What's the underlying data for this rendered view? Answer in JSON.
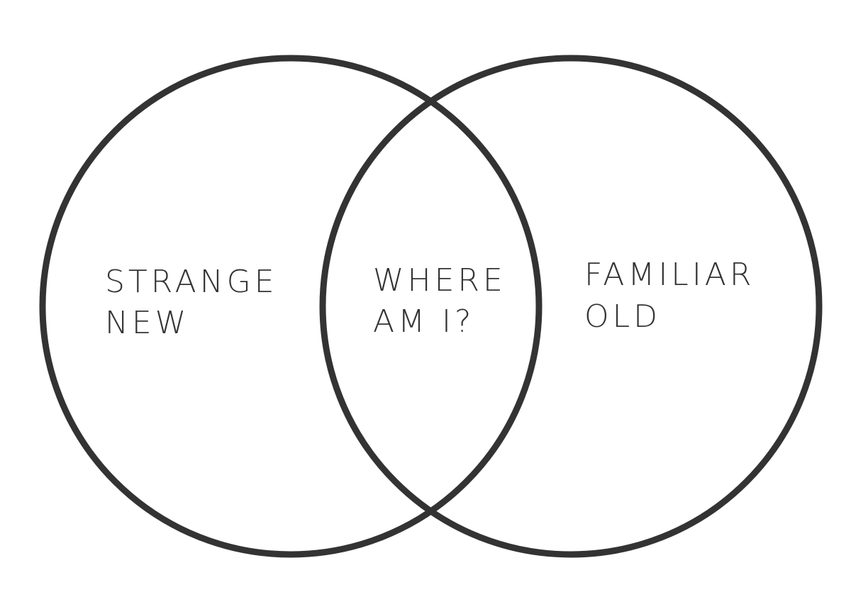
{
  "diagram": {
    "type": "venn",
    "line_color": "#333333",
    "background_color": "#ffffff",
    "sets": [
      {
        "id": "left",
        "label_lines": [
          "STRANGE",
          "NEW"
        ]
      },
      {
        "id": "right",
        "label_lines": [
          "FAMILIAR",
          "OLD"
        ]
      }
    ],
    "intersection": {
      "label_lines": [
        "WHERE",
        "AM I?"
      ]
    }
  }
}
